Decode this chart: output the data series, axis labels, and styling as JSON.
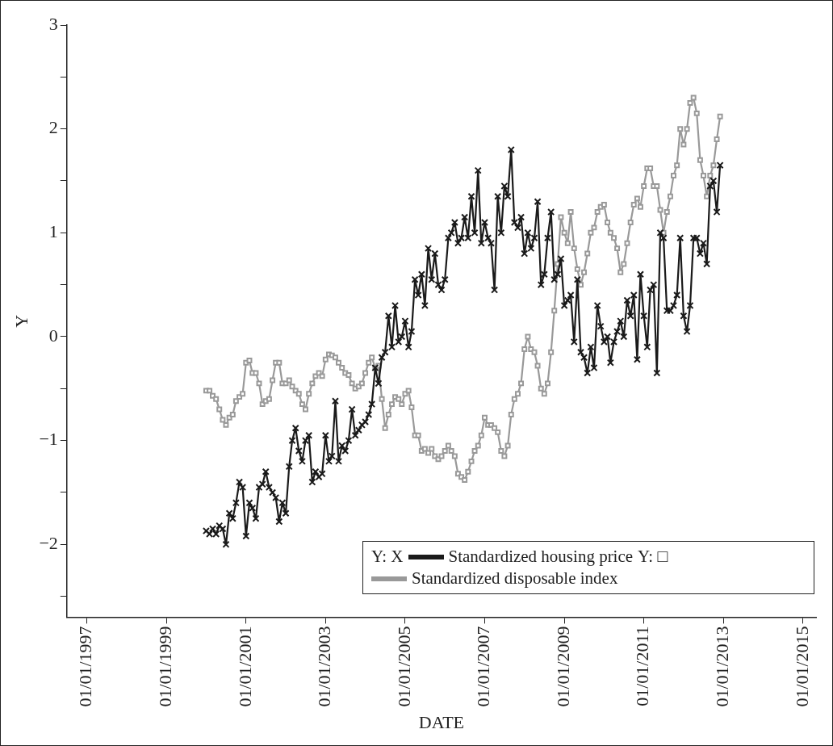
{
  "chart_data": {
    "type": "line",
    "xlabel": "DATE",
    "ylabel": "Y",
    "x": [
      "2000-01",
      "2000-02",
      "2000-03",
      "2000-04",
      "2000-05",
      "2000-06",
      "2000-07",
      "2000-08",
      "2000-09",
      "2000-10",
      "2000-11",
      "2000-12",
      "2001-01",
      "2001-02",
      "2001-03",
      "2001-04",
      "2001-05",
      "2001-06",
      "2001-07",
      "2001-08",
      "2001-09",
      "2001-10",
      "2001-11",
      "2001-12",
      "2002-01",
      "2002-02",
      "2002-03",
      "2002-04",
      "2002-05",
      "2002-06",
      "2002-07",
      "2002-08",
      "2002-09",
      "2002-10",
      "2002-11",
      "2002-12",
      "2003-01",
      "2003-02",
      "2003-03",
      "2003-04",
      "2003-05",
      "2003-06",
      "2003-07",
      "2003-08",
      "2003-09",
      "2003-10",
      "2003-11",
      "2003-12",
      "2004-01",
      "2004-02",
      "2004-03",
      "2004-04",
      "2004-05",
      "2004-06",
      "2004-07",
      "2004-08",
      "2004-09",
      "2004-10",
      "2004-11",
      "2004-12",
      "2005-01",
      "2005-02",
      "2005-03",
      "2005-04",
      "2005-05",
      "2005-06",
      "2005-07",
      "2005-08",
      "2005-09",
      "2005-10",
      "2005-11",
      "2005-12",
      "2006-01",
      "2006-02",
      "2006-03",
      "2006-04",
      "2006-05",
      "2006-06",
      "2006-07",
      "2006-08",
      "2006-09",
      "2006-10",
      "2006-11",
      "2006-12",
      "2007-01",
      "2007-02",
      "2007-03",
      "2007-04",
      "2007-05",
      "2007-06",
      "2007-07",
      "2007-08",
      "2007-09",
      "2007-10",
      "2007-11",
      "2007-12",
      "2008-01",
      "2008-02",
      "2008-03",
      "2008-04",
      "2008-05",
      "2008-06",
      "2008-07",
      "2008-08",
      "2008-09",
      "2008-10",
      "2008-11",
      "2008-12",
      "2009-01",
      "2009-02",
      "2009-03",
      "2009-04",
      "2009-05",
      "2009-06",
      "2009-07",
      "2009-08",
      "2009-09",
      "2009-10",
      "2009-11",
      "2009-12",
      "2010-01",
      "2010-02",
      "2010-03",
      "2010-04",
      "2010-05",
      "2010-06",
      "2010-07",
      "2010-08",
      "2010-09",
      "2010-10",
      "2010-11",
      "2010-12",
      "2011-01",
      "2011-02",
      "2011-03",
      "2011-04",
      "2011-05",
      "2011-06",
      "2011-07",
      "2011-08",
      "2011-09",
      "2011-10",
      "2011-11",
      "2011-12",
      "2012-01",
      "2012-02",
      "2012-03",
      "2012-04",
      "2012-05",
      "2012-06",
      "2012-07",
      "2012-08",
      "2012-09",
      "2012-10",
      "2012-11",
      "2012-12"
    ],
    "series": [
      {
        "name": "Standardized housing price",
        "color": "#1a1a1a",
        "marker": "cross",
        "values": [
          -1.87,
          -1.9,
          -1.85,
          -1.9,
          -1.82,
          -1.85,
          -2.0,
          -1.7,
          -1.75,
          -1.6,
          -1.4,
          -1.45,
          -1.92,
          -1.6,
          -1.65,
          -1.75,
          -1.45,
          -1.42,
          -1.3,
          -1.45,
          -1.5,
          -1.55,
          -1.78,
          -1.6,
          -1.7,
          -1.25,
          -1.0,
          -0.88,
          -1.1,
          -1.2,
          -1.0,
          -0.95,
          -1.4,
          -1.3,
          -1.35,
          -1.32,
          -0.95,
          -1.2,
          -1.15,
          -0.62,
          -1.2,
          -1.05,
          -1.1,
          -1.0,
          -0.7,
          -0.95,
          -0.9,
          -0.85,
          -0.82,
          -0.75,
          -0.65,
          -0.3,
          -0.45,
          -0.2,
          -0.15,
          0.2,
          -0.1,
          0.3,
          -0.05,
          0.0,
          0.15,
          -0.1,
          0.05,
          0.55,
          0.4,
          0.6,
          0.3,
          0.85,
          0.55,
          0.8,
          0.5,
          0.45,
          0.55,
          0.95,
          1.0,
          1.1,
          0.9,
          0.95,
          1.15,
          0.95,
          1.35,
          1.0,
          1.6,
          0.9,
          1.1,
          0.95,
          0.9,
          0.45,
          1.35,
          1.0,
          1.45,
          1.35,
          1.8,
          1.1,
          1.05,
          1.15,
          0.8,
          1.0,
          0.85,
          0.95,
          1.3,
          0.5,
          0.6,
          0.95,
          1.2,
          0.55,
          0.6,
          0.75,
          0.3,
          0.35,
          0.4,
          -0.05,
          0.55,
          -0.15,
          -0.2,
          -0.35,
          -0.1,
          -0.3,
          0.3,
          0.1,
          -0.05,
          0.0,
          -0.25,
          -0.05,
          0.05,
          0.15,
          0.0,
          0.35,
          0.2,
          0.4,
          -0.22,
          0.6,
          0.2,
          -0.1,
          0.45,
          0.5,
          -0.35,
          1.0,
          0.95,
          0.25,
          0.25,
          0.3,
          0.4,
          0.95,
          0.2,
          0.05,
          0.3,
          0.95,
          0.95,
          0.8,
          0.9,
          0.7,
          1.45,
          1.5,
          1.2,
          1.65
        ]
      },
      {
        "name": "Standardized disposable index",
        "color": "#999999",
        "marker": "square",
        "values": [
          -0.52,
          -0.52,
          -0.57,
          -0.6,
          -0.7,
          -0.8,
          -0.85,
          -0.78,
          -0.75,
          -0.62,
          -0.58,
          -0.55,
          -0.25,
          -0.23,
          -0.35,
          -0.35,
          -0.45,
          -0.65,
          -0.62,
          -0.6,
          -0.42,
          -0.25,
          -0.25,
          -0.45,
          -0.45,
          -0.42,
          -0.48,
          -0.52,
          -0.55,
          -0.65,
          -0.7,
          -0.55,
          -0.45,
          -0.38,
          -0.35,
          -0.38,
          -0.22,
          -0.17,
          -0.18,
          -0.2,
          -0.25,
          -0.3,
          -0.35,
          -0.37,
          -0.45,
          -0.5,
          -0.48,
          -0.45,
          -0.35,
          -0.25,
          -0.2,
          -0.3,
          -0.28,
          -0.6,
          -0.88,
          -0.75,
          -0.65,
          -0.58,
          -0.6,
          -0.65,
          -0.55,
          -0.52,
          -0.68,
          -0.95,
          -0.95,
          -1.1,
          -1.08,
          -1.12,
          -1.08,
          -1.15,
          -1.18,
          -1.15,
          -1.1,
          -1.05,
          -1.1,
          -1.15,
          -1.32,
          -1.35,
          -1.38,
          -1.3,
          -1.2,
          -1.1,
          -1.05,
          -0.95,
          -0.78,
          -0.85,
          -0.85,
          -0.88,
          -0.92,
          -1.1,
          -1.15,
          -1.05,
          -0.75,
          -0.6,
          -0.55,
          -0.45,
          -0.12,
          0.0,
          -0.12,
          -0.15,
          -0.28,
          -0.5,
          -0.55,
          -0.45,
          -0.15,
          0.25,
          0.7,
          1.15,
          1.0,
          0.9,
          1.2,
          0.85,
          0.65,
          0.5,
          0.62,
          0.8,
          1.0,
          1.05,
          1.2,
          1.25,
          1.27,
          1.1,
          1.0,
          0.95,
          0.85,
          0.62,
          0.7,
          0.9,
          1.1,
          1.27,
          1.33,
          1.25,
          1.45,
          1.62,
          1.62,
          1.45,
          1.45,
          1.22,
          1.0,
          1.2,
          1.35,
          1.55,
          1.65,
          2.0,
          1.85,
          2.0,
          2.25,
          2.3,
          2.15,
          1.7,
          1.55,
          1.35,
          1.55,
          1.65,
          1.9,
          2.12
        ]
      }
    ],
    "annotations": [
      "Y: X",
      "Y: □"
    ],
    "xlim": [
      "1996-07-01",
      "2015-05-01"
    ],
    "xticks": [
      {
        "value": "1997-01-01",
        "label": "01/01/1997"
      },
      {
        "value": "1999-01-01",
        "label": "01/01/1999"
      },
      {
        "value": "2001-01-01",
        "label": "01/01/2001"
      },
      {
        "value": "2003-01-01",
        "label": "01/01/2003"
      },
      {
        "value": "2005-01-01",
        "label": "01/01/2005"
      },
      {
        "value": "2007-01-01",
        "label": "01/01/2007"
      },
      {
        "value": "2009-01-01",
        "label": "01/01/2009"
      },
      {
        "value": "2011-01-01",
        "label": "01/01/2011"
      },
      {
        "value": "2013-01-01",
        "label": "01/01/2013"
      },
      {
        "value": "2015-01-01",
        "label": "01/01/2015"
      }
    ],
    "ylim": [
      -2.7,
      3
    ],
    "yticks": [
      {
        "value": -2.5,
        "label": null
      },
      {
        "value": -2,
        "label": "−2"
      },
      {
        "value": -1.5,
        "label": null
      },
      {
        "value": -1,
        "label": "−1"
      },
      {
        "value": -0.5,
        "label": null
      },
      0,
      {
        "value": 0.5,
        "label": null
      },
      1,
      {
        "value": 1.5,
        "label": null
      },
      2,
      {
        "value": 2.5,
        "label": null
      },
      3
    ],
    "grid": false,
    "legend": "bottom right",
    "line_style": "solid"
  }
}
